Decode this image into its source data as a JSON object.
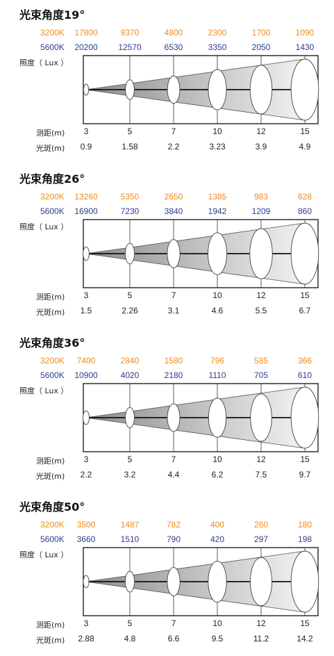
{
  "labels": {
    "k3200": "3200K",
    "k5600": "5600K",
    "illuminance": "照度（ Lux ）",
    "distance": "测距(m)",
    "spot": "光斑(m)"
  },
  "colors": {
    "k3200": "#f08a1c",
    "k5600": "#2e3c8e"
  },
  "chart_data": [
    {
      "type": "table",
      "title": "光束角度19°",
      "distances": [
        "3",
        "5",
        "7",
        "10",
        "12",
        "15"
      ],
      "lux_3200k": [
        "17800",
        "9370",
        "4800",
        "2300",
        "1700",
        "1090"
      ],
      "lux_5600k": [
        "20200",
        "12570",
        "6530",
        "3350",
        "2050",
        "1430"
      ],
      "spot_diameter": [
        "0.9",
        "1.58",
        "2.2",
        "3.23",
        "3.9",
        "4.9"
      ]
    },
    {
      "type": "table",
      "title": "光束角度26°",
      "distances": [
        "3",
        "5",
        "7",
        "10",
        "12",
        "15"
      ],
      "lux_3200k": [
        "13260",
        "5350",
        "2650",
        "1385",
        "983",
        "628"
      ],
      "lux_5600k": [
        "16900",
        "7230",
        "3840",
        "1942",
        "1209",
        "860"
      ],
      "spot_diameter": [
        "1.5",
        "2.26",
        "3.1",
        "4.6",
        "5.5",
        "6.7"
      ]
    },
    {
      "type": "table",
      "title": "光束角度36°",
      "distances": [
        "3",
        "5",
        "7",
        "10",
        "12",
        "15"
      ],
      "lux_3200k": [
        "7400",
        "2840",
        "1580",
        "796",
        "585",
        "366"
      ],
      "lux_5600k": [
        "10900",
        "4020",
        "2180",
        "1110",
        "705",
        "610"
      ],
      "spot_diameter": [
        "2.2",
        "3.2",
        "4.4",
        "6.2",
        "7.5",
        "9.7"
      ]
    },
    {
      "type": "table",
      "title": "光束角度50°",
      "distances": [
        "3",
        "5",
        "7",
        "10",
        "12",
        "15"
      ],
      "lux_3200k": [
        "3500",
        "1487",
        "782",
        "400",
        "260",
        "180"
      ],
      "lux_5600k": [
        "3660",
        "1510",
        "790",
        "420",
        "297",
        "198"
      ],
      "spot_diameter": [
        "2.88",
        "4.8",
        "6.6",
        "9.5",
        "11.2",
        "14.2"
      ]
    }
  ]
}
